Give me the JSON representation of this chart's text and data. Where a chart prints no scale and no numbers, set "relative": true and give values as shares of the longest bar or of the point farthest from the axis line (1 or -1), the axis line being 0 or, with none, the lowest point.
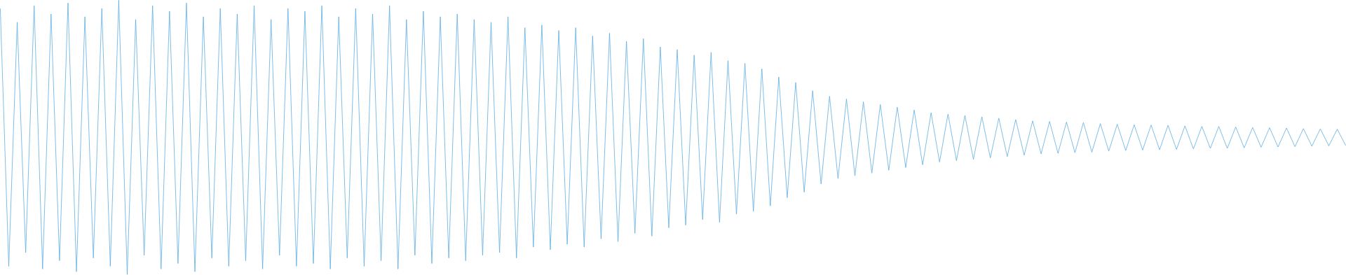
{
  "chart_data": {
    "type": "line",
    "relative": true,
    "color": "#5dade2",
    "marker": "none",
    "line_style": "solid",
    "categories": [
      null,
      null,
      null,
      null,
      null,
      null,
      null,
      null,
      null,
      null,
      null,
      null,
      null,
      null,
      null,
      null,
      null,
      null,
      null,
      null,
      null,
      null,
      null,
      null,
      null,
      null,
      null,
      null,
      null,
      null,
      null,
      null,
      null,
      null,
      null,
      null,
      null,
      null,
      null,
      null,
      null,
      null,
      null,
      null,
      null,
      null,
      null,
      null,
      null,
      null,
      null,
      null,
      null,
      null,
      null,
      null,
      null,
      null,
      null,
      null,
      null,
      null,
      null,
      null,
      null,
      null,
      null,
      null,
      null,
      null,
      null,
      null,
      null,
      null,
      null,
      null,
      null,
      null,
      null,
      null,
      null,
      null,
      null,
      null,
      null,
      null,
      null,
      null,
      null,
      null,
      null,
      null,
      null,
      null,
      null,
      null,
      null,
      null,
      null,
      null,
      null,
      null,
      null,
      null,
      null,
      null,
      null,
      null,
      null,
      null,
      null,
      null,
      null,
      null,
      null,
      null,
      null,
      null,
      null,
      null,
      null,
      null,
      null,
      null,
      null,
      null,
      null,
      null,
      null,
      null,
      null,
      null,
      null,
      null,
      null,
      null,
      null,
      null,
      null,
      null,
      null,
      null,
      null,
      null,
      null,
      null,
      null,
      null,
      null,
      null,
      null,
      null,
      null,
      null,
      null,
      null,
      null,
      null,
      null,
      null
    ],
    "values": [
      0.97,
      0.03,
      0.92,
      0.08,
      0.98,
      0.02,
      0.95,
      0.05,
      0.99,
      0.01,
      0.94,
      0.06,
      0.97,
      0.03,
      1.0,
      0.0,
      0.93,
      0.07,
      0.98,
      0.02,
      0.96,
      0.04,
      0.99,
      0.01,
      0.94,
      0.06,
      0.97,
      0.03,
      0.95,
      0.05,
      0.98,
      0.02,
      0.93,
      0.07,
      0.97,
      0.03,
      0.96,
      0.04,
      0.98,
      0.02,
      0.94,
      0.06,
      0.97,
      0.03,
      0.95,
      0.05,
      0.98,
      0.02,
      0.93,
      0.07,
      0.96,
      0.04,
      0.94,
      0.06,
      0.95,
      0.05,
      0.93,
      0.07,
      0.92,
      0.08,
      0.94,
      0.06,
      0.9,
      0.1,
      0.91,
      0.09,
      0.89,
      0.11,
      0.9,
      0.1,
      0.87,
      0.13,
      0.88,
      0.12,
      0.85,
      0.15,
      0.86,
      0.14,
      0.83,
      0.17,
      0.82,
      0.18,
      0.8,
      0.2,
      0.81,
      0.19,
      0.78,
      0.22,
      0.77,
      0.23,
      0.75,
      0.25,
      0.72,
      0.28,
      0.7,
      0.3,
      0.67,
      0.33,
      0.65,
      0.35,
      0.64,
      0.36,
      0.63,
      0.37,
      0.62,
      0.38,
      0.61,
      0.39,
      0.6,
      0.4,
      0.59,
      0.41,
      0.585,
      0.415,
      0.58,
      0.42,
      0.575,
      0.425,
      0.57,
      0.43,
      0.565,
      0.435,
      0.56,
      0.44,
      0.558,
      0.442,
      0.556,
      0.444,
      0.554,
      0.446,
      0.55,
      0.45,
      0.548,
      0.452,
      0.546,
      0.454,
      0.545,
      0.455,
      0.544,
      0.456,
      0.542,
      0.458,
      0.54,
      0.46,
      0.54,
      0.46,
      0.538,
      0.462,
      0.536,
      0.464,
      0.535,
      0.465,
      0.534,
      0.466,
      0.532,
      0.468,
      0.531,
      0.469,
      0.53,
      0.47
    ]
  }
}
